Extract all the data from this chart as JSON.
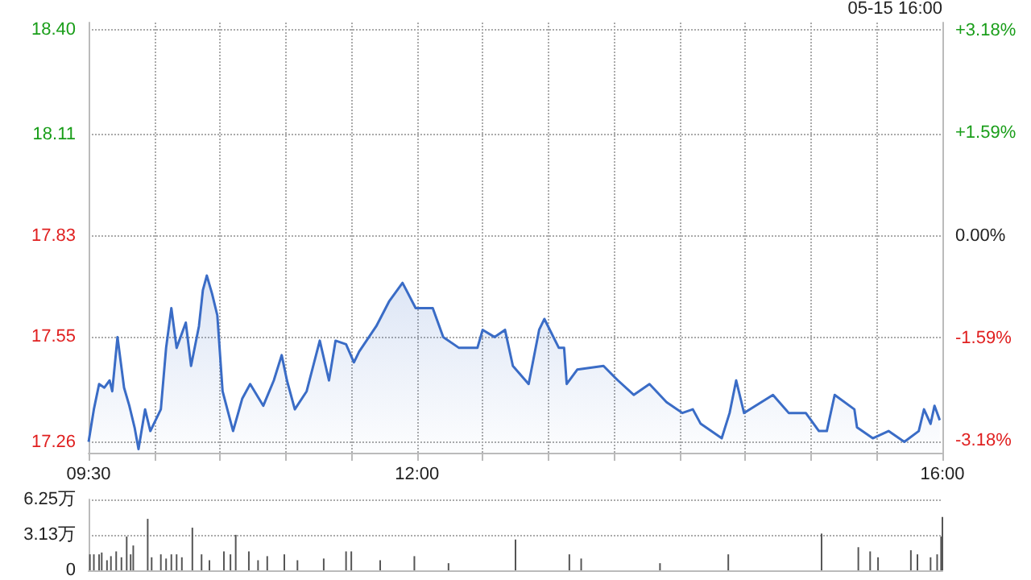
{
  "chart_data": [
    {
      "type": "area",
      "color": "#3a6cc6",
      "x": [
        9.5,
        9.54,
        9.58,
        9.62,
        9.66,
        9.68,
        9.72,
        9.77,
        9.81,
        9.85,
        9.88,
        9.93,
        9.97,
        10.05,
        10.09,
        10.13,
        10.17,
        10.24,
        10.28,
        10.34,
        10.37,
        10.4,
        10.44,
        10.48,
        10.52,
        10.6,
        10.67,
        10.73,
        10.83,
        10.91,
        10.97,
        11.01,
        11.07,
        11.16,
        11.26,
        11.33,
        11.38,
        11.46,
        11.52,
        11.56,
        11.69,
        11.79,
        11.89,
        11.99,
        12.12,
        12.2,
        12.32,
        12.46,
        12.5,
        12.59,
        12.67,
        12.73,
        12.85,
        12.93,
        12.97,
        13.08,
        13.12,
        13.14,
        13.22,
        13.42,
        13.53,
        13.65,
        13.77,
        13.9,
        14.02,
        14.1,
        14.16,
        14.32,
        14.38,
        14.43,
        14.49,
        14.71,
        14.83,
        14.96,
        15.06,
        15.12,
        15.18,
        15.33,
        15.35,
        15.47,
        15.59,
        15.71,
        15.82,
        15.86,
        15.91,
        15.94,
        15.98
      ],
      "values": [
        17.26,
        17.35,
        17.42,
        17.41,
        17.43,
        17.4,
        17.55,
        17.41,
        17.36,
        17.3,
        17.24,
        17.35,
        17.29,
        17.35,
        17.52,
        17.63,
        17.52,
        17.59,
        17.47,
        17.58,
        17.68,
        17.72,
        17.67,
        17.61,
        17.4,
        17.29,
        17.38,
        17.42,
        17.36,
        17.43,
        17.5,
        17.43,
        17.35,
        17.4,
        17.54,
        17.43,
        17.54,
        17.53,
        17.48,
        17.51,
        17.58,
        17.65,
        17.7,
        17.63,
        17.63,
        17.55,
        17.52,
        17.52,
        17.57,
        17.55,
        17.57,
        17.47,
        17.42,
        17.57,
        17.6,
        17.52,
        17.52,
        17.42,
        17.46,
        17.47,
        17.43,
        17.39,
        17.42,
        17.37,
        17.34,
        17.35,
        17.31,
        17.27,
        17.34,
        17.43,
        17.34,
        17.39,
        17.34,
        17.34,
        17.29,
        17.29,
        17.39,
        17.35,
        17.3,
        17.27,
        17.29,
        17.26,
        17.29,
        17.35,
        17.31,
        17.36,
        17.32
      ],
      "xlim": [
        9.5,
        16
      ],
      "xticks": [
        {
          "value": 9.5,
          "label": "09:30"
        },
        {
          "value": 10,
          "label": null
        },
        {
          "value": 10.5,
          "label": null
        },
        {
          "value": 11,
          "label": null
        },
        {
          "value": 11.5,
          "label": null
        },
        {
          "value": 12,
          "label": "12:00"
        },
        {
          "value": 12.5,
          "label": null
        },
        {
          "value": 13,
          "label": null
        },
        {
          "value": 13.5,
          "label": null
        },
        {
          "value": 14,
          "label": null
        },
        {
          "value": 14.5,
          "label": null
        },
        {
          "value": 15,
          "label": null
        },
        {
          "value": 15.5,
          "label": null
        },
        {
          "value": 16,
          "label": "16:00"
        }
      ],
      "ylim": [
        17.23,
        18.42
      ],
      "yticks": [
        {
          "value": 17.26,
          "label": "17.26"
        },
        {
          "value": 17.55,
          "label": "17.55"
        },
        {
          "value": 17.83,
          "label": "17.83"
        },
        {
          "value": 18.11,
          "label": "18.11"
        },
        {
          "value": 18.4,
          "label": "18.40"
        }
      ],
      "y2lim": [
        -3.37,
        3.31
      ],
      "y2ticks": [
        {
          "value": -3.18,
          "label": "-3.18%"
        },
        {
          "value": -1.59,
          "label": "-1.59%"
        },
        {
          "value": 0,
          "label": "0.00%"
        },
        {
          "value": 1.59,
          "label": "+1.59%"
        },
        {
          "value": 3.18,
          "label": "+3.18%"
        }
      ],
      "grid": true,
      "annotations": [
        "05-15 16:00"
      ]
    },
    {
      "type": "bar",
      "color": "#555555",
      "x": [
        9.51,
        9.54,
        9.58,
        9.6,
        9.64,
        9.67,
        9.71,
        9.75,
        9.79,
        9.82,
        9.84,
        9.95,
        9.98,
        10.05,
        10.09,
        10.13,
        10.17,
        10.21,
        10.29,
        10.36,
        10.42,
        10.53,
        10.58,
        10.62,
        10.72,
        10.79,
        10.86,
        10.99,
        11.09,
        11.29,
        11.46,
        11.5,
        11.72,
        11.98,
        12.24,
        12.75,
        13.16,
        13.25,
        13.85,
        14.37,
        15.08,
        15.36,
        15.45,
        15.51,
        15.76,
        15.81,
        15.91,
        15.96,
        15.99,
        16
      ],
      "values": [
        1.41,
        1.41,
        1.41,
        1.57,
        0.89,
        1.25,
        1.67,
        1.15,
        2.98,
        1.41,
        2.19,
        4.54,
        1.15,
        1.41,
        1.04,
        1.41,
        1.41,
        1.15,
        3.76,
        1.41,
        0.89,
        1.67,
        1.41,
        3.13,
        1.67,
        0.89,
        1.25,
        1.41,
        0.89,
        1.04,
        1.67,
        1.67,
        0.89,
        1.25,
        0.63,
        2.71,
        1.41,
        1.04,
        0.63,
        1.41,
        3.24,
        2.04,
        1.67,
        1.15,
        1.77,
        1.41,
        1.15,
        1.41,
        2.98,
        4.7
      ],
      "xlim": [
        9.5,
        16
      ],
      "ylim": [
        0,
        6.25
      ],
      "yticks": [
        {
          "value": 0,
          "label": "0"
        },
        {
          "value": 3.13,
          "label": "3.13万"
        },
        {
          "value": 6.25,
          "label": "6.25万"
        }
      ],
      "grid": "y",
      "tick_labels": "y"
    }
  ]
}
